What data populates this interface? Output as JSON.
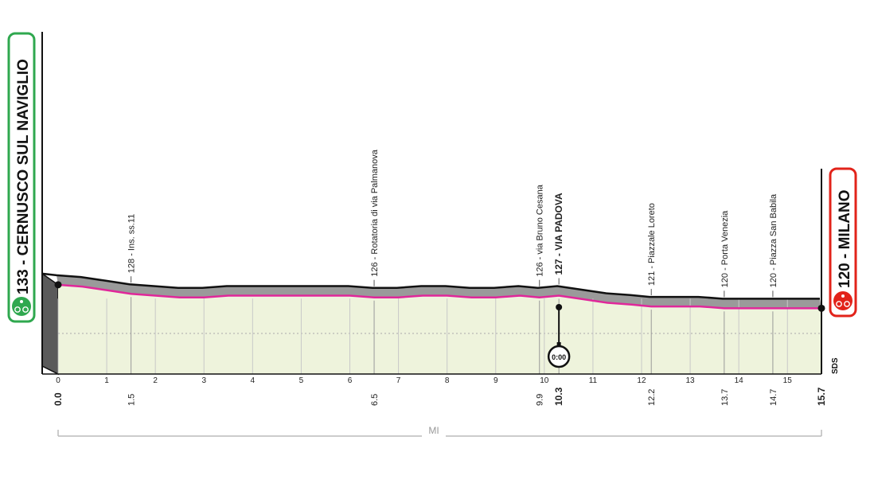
{
  "chart_data": {
    "type": "area",
    "title": "",
    "x_unit_label": "MI",
    "xlim": [
      0,
      15.7
    ],
    "start": {
      "label": "133 - CERNUSCO SUL NAVIGLIO",
      "km": 0.0,
      "color": "#2fa84f"
    },
    "finish": {
      "label": "120 - MILANO",
      "km": 15.7,
      "color": "#e2231a"
    },
    "brand": "SDS",
    "km_ticks": [
      0,
      1,
      2,
      3,
      4,
      5,
      6,
      7,
      8,
      9,
      10,
      11,
      12,
      13,
      14,
      15
    ],
    "points_of_interest": [
      {
        "label": "128 - Ins. ss.11",
        "km": 1.5,
        "km_label": "1.5",
        "bold": false
      },
      {
        "label": "126 - Rotatoria di via Palmanova",
        "km": 6.5,
        "km_label": "6.5",
        "bold": false
      },
      {
        "label": "126 - via Bruno Cesana",
        "km": 9.9,
        "km_label": "9.9",
        "bold": false
      },
      {
        "label": "127 - VIA PADOVA",
        "km": 10.3,
        "km_label": "10.3",
        "bold": true
      },
      {
        "label": "121 - Piazzale Loreto",
        "km": 12.2,
        "km_label": "12.2",
        "bold": false
      },
      {
        "label": "120 - Porta Venezia",
        "km": 13.7,
        "km_label": "13.7",
        "bold": false
      },
      {
        "label": "120 - Piazza San Babila",
        "km": 14.7,
        "km_label": "14.7",
        "bold": false
      }
    ],
    "start_km_label": "0.0",
    "finish_km_label": "15.7",
    "intermediate_time_check": {
      "km": 10.3,
      "label": "0:00"
    },
    "elevation_profile": {
      "km": [
        0,
        0.5,
        1,
        1.5,
        2,
        2.5,
        3,
        3.5,
        4,
        4.5,
        5,
        5.5,
        6,
        6.5,
        7,
        7.5,
        8,
        8.5,
        9,
        9.5,
        9.9,
        10.3,
        10.8,
        11.3,
        11.8,
        12.2,
        12.7,
        13.2,
        13.7,
        14.2,
        14.7,
        15.2,
        15.7
      ],
      "altitude": [
        133,
        132,
        130,
        128,
        127,
        126,
        126,
        127,
        127,
        127,
        127,
        127,
        127,
        126,
        126,
        127,
        127,
        126,
        126,
        127,
        126,
        127,
        125,
        123,
        122,
        121,
        121,
        121,
        120,
        120,
        120,
        120,
        120
      ]
    },
    "colors": {
      "route_line": "#e0279a",
      "profile_fill": "#9a9a9a",
      "plain_fill": "#eef3dc",
      "outline": "#111111"
    }
  }
}
